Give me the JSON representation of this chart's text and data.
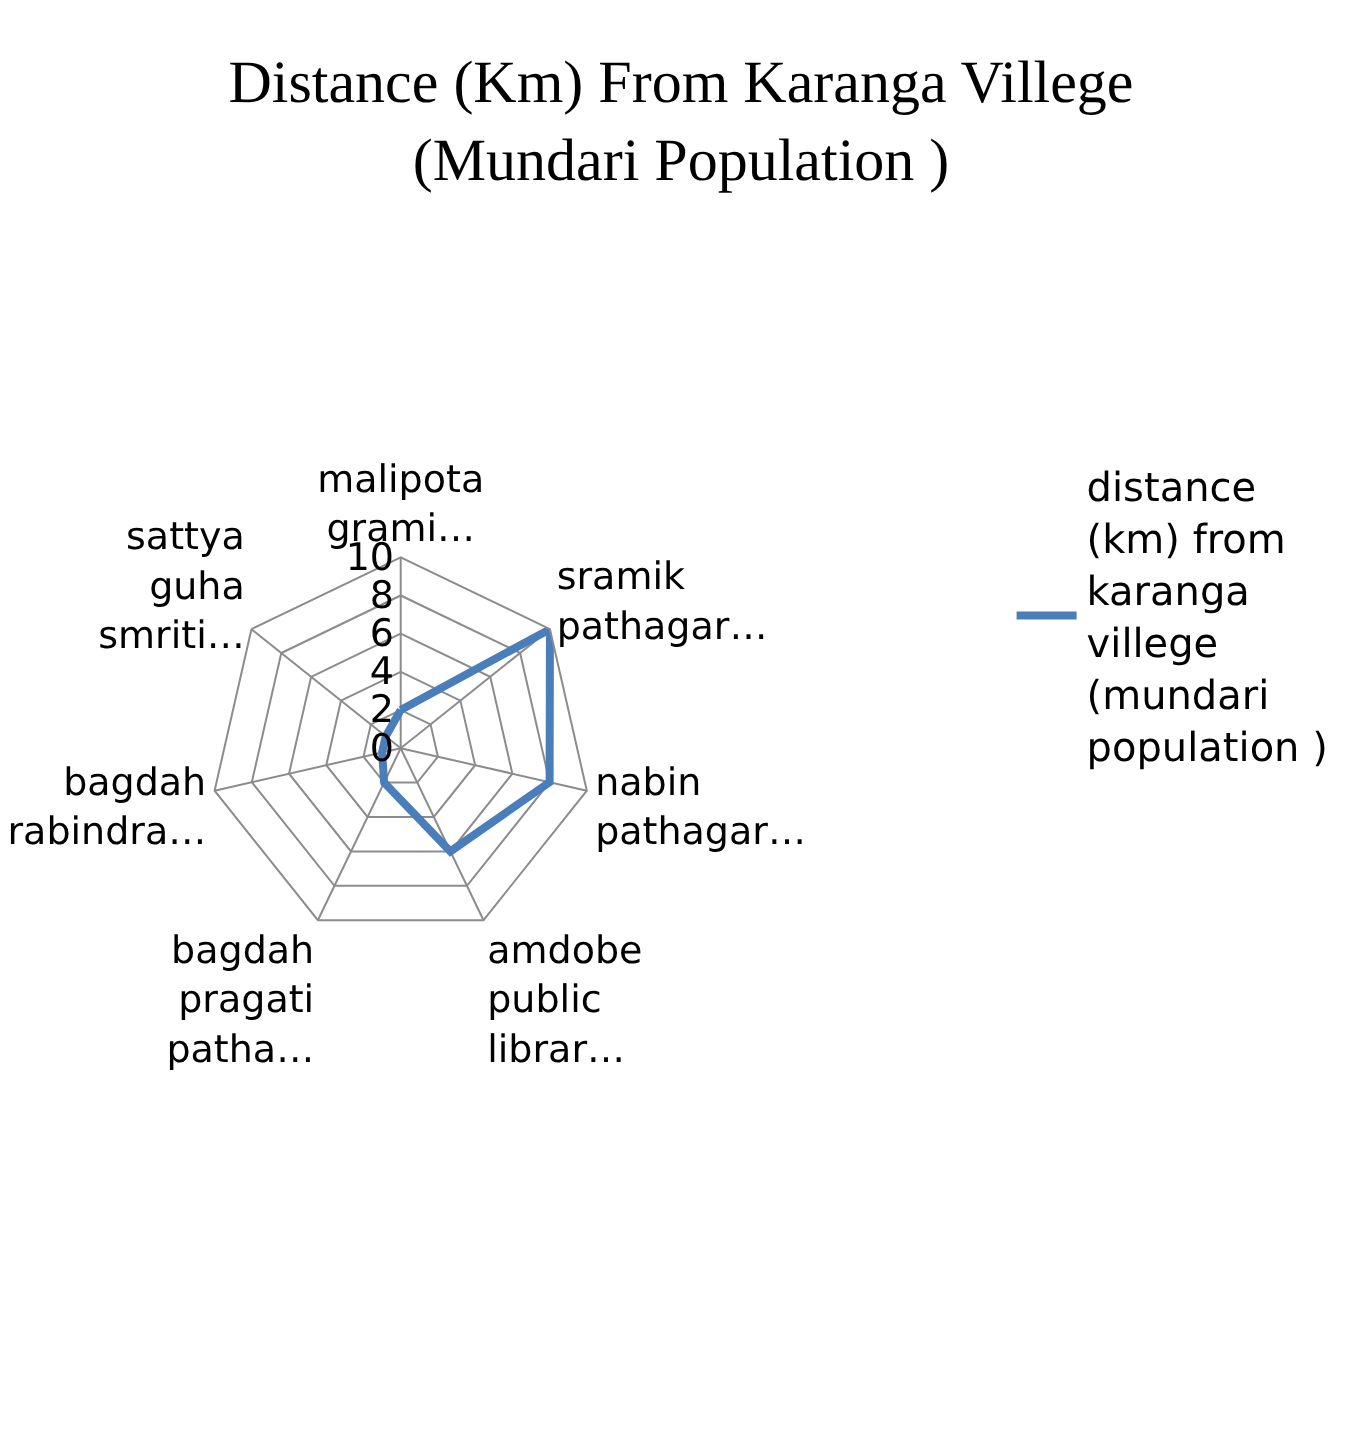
{
  "chart_data": {
    "type": "radar",
    "title": "Distance (Km) From Karanga Villege (Mundari Population )",
    "categories": [
      "malipota grami…",
      "sramik pathagar…",
      "nabin pathagar…",
      "amdobe public librar…",
      "bagdah pragati patha…",
      "bagdah rabindra…",
      "sattya guha smriti…"
    ],
    "series": [
      {
        "name": "distance (km) from karanga villege (mundari population )",
        "color": "#4a7ebb",
        "values": [
          2,
          10,
          8,
          6,
          2,
          1,
          1
        ]
      }
    ],
    "ylim": [
      0,
      10
    ],
    "yticks": [
      0,
      2,
      4,
      6,
      8,
      10
    ],
    "grid": true,
    "legend": "right",
    "marker": "none",
    "line_style": "solid"
  }
}
